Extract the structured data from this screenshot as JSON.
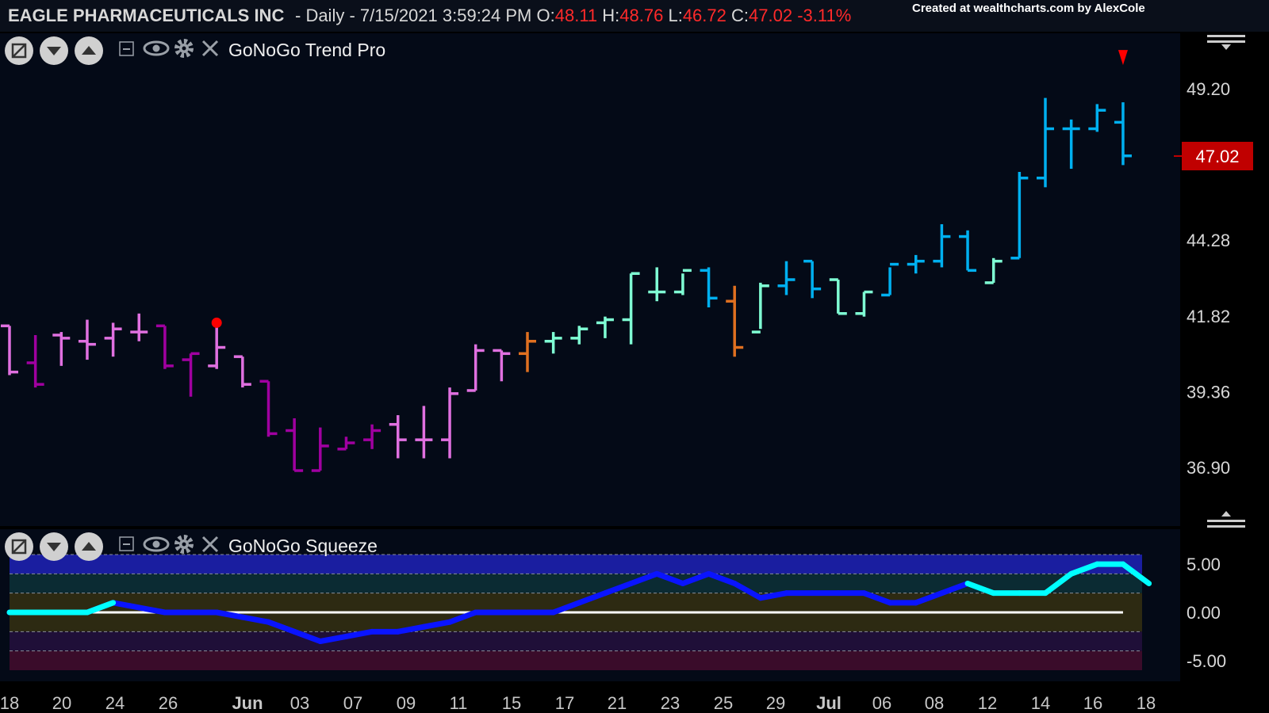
{
  "header": {
    "ticker": "EAGLE PHARMACEUTICALS INC",
    "period": " - Daily - 7/15/2021 3:59:24 PM",
    "o_label": " O:",
    "o": "48.11",
    "h_label": " H:",
    "h": "48.76",
    "l_label": " L:",
    "l": "46.72",
    "c_label": " C:",
    "c": "47.02",
    "change": "-3.11%",
    "credit": "Created at wealthcharts.com by AlexCole"
  },
  "price_panel": {
    "title": "GoNoGo Trend Pro",
    "last_price": "47.02"
  },
  "squeeze_panel": {
    "title": "GoNoGo Squeeze"
  },
  "colors": {
    "background": "#040a17",
    "strong_go": "#00b0f0",
    "go": "#7fffd4",
    "no_go": "#e070e0",
    "strong_no_go": "#a000a0",
    "go_fish": "#e07020",
    "squeeze_line": "#0a14ff",
    "squeeze_line_hi": "#00ffff",
    "zero_line": "#ffffff",
    "down_marker": "#ff0000"
  },
  "chart_data": [
    {
      "type": "ohlc",
      "title": "GoNoGo Trend Pro",
      "ylim": [
        35.0,
        51.0
      ],
      "yticks": [
        36.9,
        39.36,
        41.82,
        44.28,
        49.2
      ],
      "xticks": [
        "18",
        "20",
        "24",
        "26",
        "Jun",
        "03",
        "07",
        "09",
        "11",
        "15",
        "17",
        "21",
        "23",
        "25",
        "29",
        "Jul",
        "06",
        "08",
        "12",
        "14",
        "16",
        "18"
      ],
      "bars": [
        {
          "o": 41.5,
          "h": 41.5,
          "l": 39.9,
          "c": 40.0,
          "color": "no_go"
        },
        {
          "o": 40.3,
          "h": 41.2,
          "l": 39.5,
          "c": 39.6,
          "color": "strong_no_go"
        },
        {
          "o": 41.2,
          "h": 41.3,
          "l": 40.2,
          "c": 41.1,
          "color": "no_go"
        },
        {
          "o": 41.0,
          "h": 41.7,
          "l": 40.4,
          "c": 40.9,
          "color": "no_go"
        },
        {
          "o": 41.1,
          "h": 41.6,
          "l": 40.5,
          "c": 41.4,
          "color": "no_go"
        },
        {
          "o": 41.3,
          "h": 41.9,
          "l": 41.0,
          "c": 41.3,
          "color": "no_go"
        },
        {
          "o": 41.5,
          "h": 41.5,
          "l": 40.1,
          "c": 40.2,
          "color": "strong_no_go"
        },
        {
          "o": 40.4,
          "h": 40.6,
          "l": 39.2,
          "c": 40.6,
          "color": "strong_no_go"
        },
        {
          "o": 40.2,
          "h": 41.6,
          "l": 40.1,
          "c": 40.8,
          "color": "no_go"
        },
        {
          "o": 40.5,
          "h": 40.5,
          "l": 39.5,
          "c": 39.6,
          "color": "no_go"
        },
        {
          "o": 39.7,
          "h": 39.7,
          "l": 37.9,
          "c": 38.0,
          "color": "strong_no_go"
        },
        {
          "o": 38.1,
          "h": 38.5,
          "l": 36.8,
          "c": 36.8,
          "color": "strong_no_go"
        },
        {
          "o": 36.8,
          "h": 38.2,
          "l": 36.8,
          "c": 37.6,
          "color": "strong_no_go"
        },
        {
          "o": 37.5,
          "h": 37.9,
          "l": 37.5,
          "c": 37.7,
          "color": "strong_no_go"
        },
        {
          "o": 37.8,
          "h": 38.3,
          "l": 37.5,
          "c": 38.1,
          "color": "strong_no_go"
        },
        {
          "o": 38.3,
          "h": 38.6,
          "l": 37.2,
          "c": 37.8,
          "color": "no_go"
        },
        {
          "o": 37.8,
          "h": 38.9,
          "l": 37.2,
          "c": 37.8,
          "color": "no_go"
        },
        {
          "o": 37.8,
          "h": 39.5,
          "l": 37.2,
          "c": 39.3,
          "color": "no_go"
        },
        {
          "o": 39.4,
          "h": 40.9,
          "l": 39.4,
          "c": 40.7,
          "color": "no_go"
        },
        {
          "o": 40.7,
          "h": 40.7,
          "l": 39.7,
          "c": 40.6,
          "color": "no_go"
        },
        {
          "o": 40.6,
          "h": 41.3,
          "l": 40.0,
          "c": 41.0,
          "color": "go_fish"
        },
        {
          "o": 41.0,
          "h": 41.3,
          "l": 40.6,
          "c": 41.1,
          "color": "go"
        },
        {
          "o": 41.1,
          "h": 41.5,
          "l": 40.9,
          "c": 41.4,
          "color": "go"
        },
        {
          "o": 41.6,
          "h": 41.8,
          "l": 41.1,
          "c": 41.7,
          "color": "go"
        },
        {
          "o": 41.7,
          "h": 43.2,
          "l": 40.9,
          "c": 43.2,
          "color": "go"
        },
        {
          "o": 42.6,
          "h": 43.4,
          "l": 42.3,
          "c": 42.6,
          "color": "go"
        },
        {
          "o": 42.6,
          "h": 43.2,
          "l": 42.5,
          "c": 43.3,
          "color": "go"
        },
        {
          "o": 43.3,
          "h": 43.4,
          "l": 42.1,
          "c": 42.4,
          "color": "strong_go"
        },
        {
          "o": 42.3,
          "h": 42.8,
          "l": 40.5,
          "c": 40.8,
          "color": "go_fish"
        },
        {
          "o": 41.3,
          "h": 42.9,
          "l": 41.4,
          "c": 42.8,
          "color": "go"
        },
        {
          "o": 42.8,
          "h": 43.6,
          "l": 42.5,
          "c": 43.0,
          "color": "strong_go"
        },
        {
          "o": 43.6,
          "h": 43.6,
          "l": 42.4,
          "c": 42.7,
          "color": "strong_go"
        },
        {
          "o": 43.0,
          "h": 43.0,
          "l": 41.9,
          "c": 41.9,
          "color": "go"
        },
        {
          "o": 41.9,
          "h": 42.6,
          "l": 41.8,
          "c": 42.6,
          "color": "go"
        },
        {
          "o": 42.5,
          "h": 43.4,
          "l": 42.5,
          "c": 43.5,
          "color": "strong_go"
        },
        {
          "o": 43.5,
          "h": 43.8,
          "l": 43.2,
          "c": 43.6,
          "color": "strong_go"
        },
        {
          "o": 43.6,
          "h": 44.8,
          "l": 43.4,
          "c": 44.4,
          "color": "strong_go"
        },
        {
          "o": 44.4,
          "h": 44.6,
          "l": 43.3,
          "c": 43.3,
          "color": "strong_go"
        },
        {
          "o": 42.9,
          "h": 43.7,
          "l": 42.9,
          "c": 43.6,
          "color": "go"
        },
        {
          "o": 43.7,
          "h": 46.5,
          "l": 43.7,
          "c": 46.3,
          "color": "strong_go"
        },
        {
          "o": 46.3,
          "h": 48.9,
          "l": 46.0,
          "c": 47.9,
          "color": "strong_go"
        },
        {
          "o": 47.9,
          "h": 48.2,
          "l": 46.6,
          "c": 47.9,
          "color": "strong_go"
        },
        {
          "o": 47.9,
          "h": 48.7,
          "l": 47.8,
          "c": 48.5,
          "color": "strong_go"
        },
        {
          "o": 48.11,
          "h": 48.76,
          "l": 46.72,
          "c": 47.02,
          "color": "strong_go"
        }
      ],
      "markers": [
        {
          "type": "dot",
          "bar": 8,
          "price": 41.6,
          "color": "down_marker"
        },
        {
          "type": "triangle-down",
          "bar": 43,
          "price": 50.2,
          "color": "down_marker"
        }
      ]
    },
    {
      "type": "line",
      "title": "GoNoGo Squeeze",
      "ylim": [
        -6.0,
        6.0
      ],
      "yticks": [
        -5.0,
        0.0,
        5.0
      ],
      "series": [
        {
          "values": [
            0,
            0,
            0,
            0,
            1,
            0.5,
            0,
            0,
            0,
            -0.5,
            -1,
            -2,
            -3,
            -2.5,
            -2,
            -2,
            -1.5,
            -1,
            0,
            0,
            0,
            0,
            1,
            2,
            3,
            4,
            3,
            4,
            3,
            1.5,
            2,
            2,
            2,
            2,
            1,
            1,
            2,
            3,
            2,
            2,
            2,
            4,
            5,
            5,
            3
          ]
        }
      ],
      "zero_line_values": [
        0,
        0
      ],
      "bands": [
        {
          "from": 4.0,
          "to": 6.0,
          "color": "#1a1ea0"
        },
        {
          "from": 2.0,
          "to": 4.0,
          "color": "#0b2b33"
        },
        {
          "from": -2.0,
          "to": 2.0,
          "color": "#2d2a12"
        },
        {
          "from": -4.0,
          "to": -2.0,
          "color": "#1f0f38"
        },
        {
          "from": -6.0,
          "to": -4.0,
          "color": "#3a0c2a"
        }
      ]
    }
  ]
}
